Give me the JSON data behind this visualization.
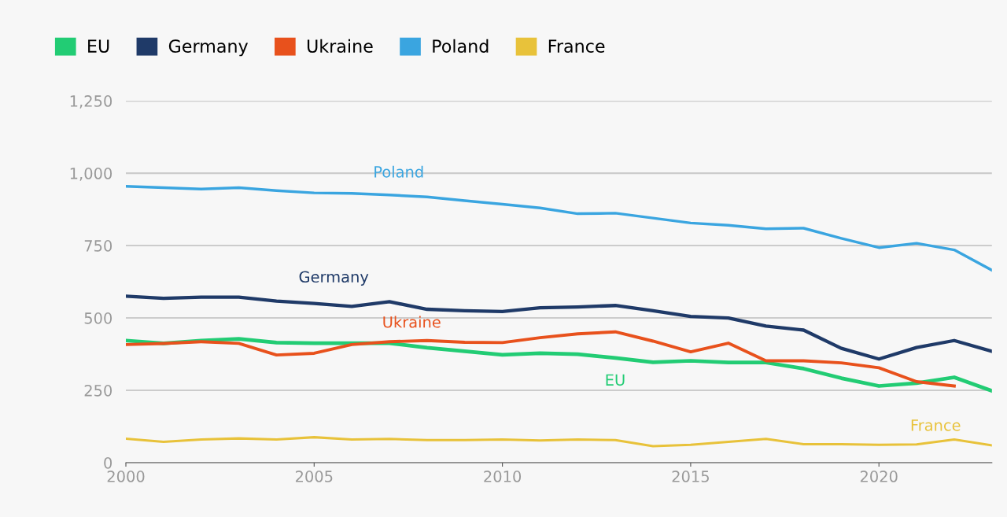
{
  "chart_data": {
    "type": "line",
    "x": [
      2000,
      2001,
      2002,
      2003,
      2004,
      2005,
      2006,
      2007,
      2008,
      2009,
      2010,
      2011,
      2012,
      2013,
      2014,
      2015,
      2016,
      2017,
      2018,
      2019,
      2020,
      2021,
      2022,
      2023
    ],
    "series": [
      {
        "name": "EU",
        "color": "#22cc74",
        "values": [
          422,
          412,
          422,
          428,
          415,
          413,
          413,
          413,
          397,
          385,
          373,
          378,
          375,
          362,
          347,
          352,
          346,
          346,
          325,
          292,
          265,
          275,
          295,
          248
        ]
      },
      {
        "name": "Germany",
        "color": "#1f3a68",
        "values": [
          575,
          568,
          572,
          572,
          558,
          550,
          540,
          556,
          530,
          525,
          522,
          535,
          538,
          543,
          525,
          505,
          500,
          472,
          458,
          395,
          358,
          398,
          422,
          385
        ]
      },
      {
        "name": "Ukraine",
        "color": "#e8511c",
        "values": [
          408,
          412,
          418,
          412,
          372,
          378,
          408,
          418,
          422,
          416,
          415,
          432,
          445,
          452,
          420,
          383,
          413,
          352,
          352,
          345,
          328,
          280,
          265,
          null
        ]
      },
      {
        "name": "Poland",
        "color": "#3aa5e0",
        "values": [
          955,
          950,
          945,
          950,
          940,
          932,
          930,
          925,
          918,
          905,
          893,
          880,
          860,
          862,
          845,
          828,
          820,
          808,
          810,
          775,
          743,
          758,
          735,
          665
        ]
      },
      {
        "name": "France",
        "color": "#e8c23a",
        "values": [
          83,
          72,
          80,
          84,
          80,
          88,
          80,
          82,
          78,
          78,
          80,
          77,
          80,
          78,
          57,
          62,
          72,
          82,
          64,
          64,
          62,
          63,
          80,
          60
        ]
      }
    ],
    "xlim": [
      2000,
      2023
    ],
    "xticks": [
      2000,
      2005,
      2010,
      2015,
      2020
    ],
    "ylim": [
      0,
      1250
    ],
    "yticks": [
      0,
      250,
      500,
      750,
      {
        "value": 1000,
        "label": "1,000"
      },
      {
        "value": 1250,
        "label": "1,250"
      }
    ],
    "grid": "y",
    "legend": "top left",
    "marker": "none",
    "line_style": "solid"
  }
}
